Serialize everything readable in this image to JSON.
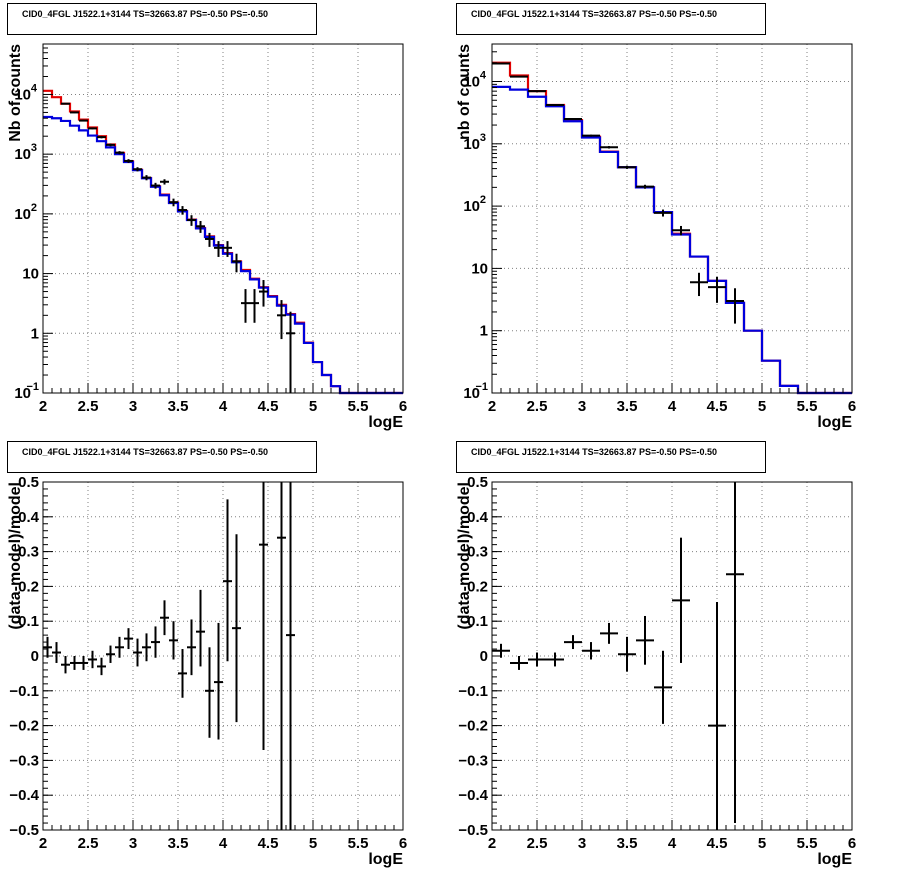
{
  "colors": {
    "data": "#000000",
    "total_model": "#e00000",
    "component_model": "#0000dd",
    "grid": "#808080"
  },
  "chart_data": [
    {
      "id": "counts-fine",
      "type": "line",
      "title": "CID0_4FGL J1522.1+3144 TS=32663.87 PS=-0.50 PS=-0.50",
      "xlabel": "logE",
      "ylabel": "Nb of counts",
      "xlim": [
        2,
        6
      ],
      "ylim": [
        0.1,
        70000
      ],
      "ylog": true,
      "grid": true,
      "xticks": [
        "2",
        "2.5",
        "3",
        "3.5",
        "4",
        "4.5",
        "5",
        "5.5",
        "6"
      ],
      "yticks": [
        {
          "v": 0.1,
          "label": "10",
          "sup": "−1"
        },
        {
          "v": 1,
          "label": "1"
        },
        {
          "v": 10,
          "label": "10"
        },
        {
          "v": 100,
          "label": "10",
          "sup": "2"
        },
        {
          "v": 1000,
          "label": "10",
          "sup": "3"
        },
        {
          "v": 10000,
          "label": "10",
          "sup": "4"
        }
      ],
      "bin_edges": [
        2.0,
        2.1,
        2.2,
        2.3,
        2.4,
        2.5,
        2.6,
        2.7,
        2.8,
        2.9,
        3.0,
        3.1,
        3.2,
        3.3,
        3.4,
        3.5,
        3.6,
        3.7,
        3.8,
        3.9,
        4.0,
        4.1,
        4.2,
        4.3,
        4.4,
        4.5,
        4.6,
        4.7,
        4.8,
        4.9,
        5.0,
        5.1,
        5.2,
        5.3,
        5.4,
        5.5,
        5.6,
        5.7,
        5.8,
        5.9,
        6.0
      ],
      "series": [
        {
          "kind": "hist",
          "color": "#e00000",
          "values": [
            11500,
            9000,
            7000,
            5200,
            3800,
            2800,
            2000,
            1450,
            1050,
            760,
            550,
            400,
            290,
            210,
            155,
            112,
            80,
            58,
            42,
            30,
            22,
            16,
            11.5,
            8.2,
            5.9,
            4.2,
            3.0,
            2.1,
            1.5,
            0.7,
            0.33,
            0.2,
            0.13,
            0.1,
            0.1,
            0.1,
            0.1,
            0.1,
            0.1,
            0.1
          ]
        },
        {
          "kind": "hist",
          "color": "#0000dd",
          "values": [
            4200,
            4000,
            3600,
            3000,
            2500,
            2050,
            1650,
            1300,
            1000,
            740,
            540,
            395,
            285,
            205,
            152,
            110,
            79,
            57,
            41,
            29.5,
            21.5,
            15.5,
            11,
            8,
            5.8,
            4.1,
            2.9,
            2.05,
            1.45,
            0.69,
            0.33,
            0.2,
            0.13,
            0.1,
            0.1,
            0.1,
            0.1,
            0.1,
            0.1,
            0.1
          ]
        },
        {
          "kind": "points",
          "color": "#000000",
          "points": [
            {
              "x": 2.25,
              "y": 7000,
              "lo": 6850,
              "hi": 7150
            },
            {
              "x": 2.35,
              "y": 5000,
              "lo": 4860,
              "hi": 5140
            },
            {
              "x": 2.45,
              "y": 3650,
              "lo": 3530,
              "hi": 3770
            },
            {
              "x": 2.55,
              "y": 2700,
              "lo": 2600,
              "hi": 2800
            },
            {
              "x": 2.65,
              "y": 1930,
              "lo": 1840,
              "hi": 2020
            },
            {
              "x": 2.75,
              "y": 1430,
              "lo": 1355,
              "hi": 1505
            },
            {
              "x": 2.85,
              "y": 1060,
              "lo": 995,
              "hi": 1125
            },
            {
              "x": 2.95,
              "y": 770,
              "lo": 715,
              "hi": 825
            },
            {
              "x": 3.05,
              "y": 560,
              "lo": 515,
              "hi": 605
            },
            {
              "x": 3.15,
              "y": 405,
              "lo": 365,
              "hi": 445
            },
            {
              "x": 3.25,
              "y": 298,
              "lo": 265,
              "hi": 331
            },
            {
              "x": 3.35,
              "y": 345,
              "lo": 310,
              "hi": 380
            },
            {
              "x": 3.45,
              "y": 157,
              "lo": 134,
              "hi": 180
            },
            {
              "x": 3.55,
              "y": 116,
              "lo": 97,
              "hi": 135
            },
            {
              "x": 3.65,
              "y": 79,
              "lo": 63,
              "hi": 95
            },
            {
              "x": 3.75,
              "y": 62,
              "lo": 48,
              "hi": 76
            },
            {
              "x": 3.85,
              "y": 38,
              "lo": 28,
              "hi": 48
            },
            {
              "x": 3.95,
              "y": 27,
              "lo": 19,
              "hi": 35
            },
            {
              "x": 4.05,
              "y": 27,
              "lo": 19,
              "hi": 35
            },
            {
              "x": 4.15,
              "y": 16,
              "lo": 10.5,
              "hi": 21.5
            },
            {
              "x": 4.25,
              "y": 3.2,
              "lo": 1.5,
              "hi": 5.5
            },
            {
              "x": 4.35,
              "y": 3.2,
              "lo": 1.5,
              "hi": 5.5
            },
            {
              "x": 4.45,
              "y": 5.0,
              "lo": 2.8,
              "hi": 7.8
            },
            {
              "x": 4.65,
              "y": 2.0,
              "lo": 0.8,
              "hi": 3.6
            },
            {
              "x": 4.75,
              "y": 1.0,
              "lo": 0.1,
              "hi": 2.3
            }
          ]
        }
      ]
    },
    {
      "id": "counts-coarse",
      "type": "line",
      "title": "CID0_4FGL J1522.1+3144 TS=32663.87 PS=-0.50 PS=-0.50",
      "xlabel": "logE",
      "ylabel": "nb of counts",
      "xlim": [
        2,
        6
      ],
      "ylim": [
        0.1,
        40000
      ],
      "ylog": true,
      "grid": true,
      "xticks": [
        "2",
        "2.5",
        "3",
        "3.5",
        "4",
        "4.5",
        "5",
        "5.5",
        "6"
      ],
      "yticks": [
        {
          "v": 0.1,
          "label": "10",
          "sup": "−1"
        },
        {
          "v": 1,
          "label": "1"
        },
        {
          "v": 10,
          "label": "10"
        },
        {
          "v": 100,
          "label": "10",
          "sup": "2"
        },
        {
          "v": 1000,
          "label": "10",
          "sup": "3"
        },
        {
          "v": 10000,
          "label": "10",
          "sup": "4"
        }
      ],
      "bin_edges": [
        2.0,
        2.2,
        2.4,
        2.6,
        2.8,
        3.0,
        3.2,
        3.4,
        3.6,
        3.8,
        4.0,
        4.2,
        4.4,
        4.6,
        4.8,
        5.0,
        5.2,
        5.4,
        5.6,
        5.8,
        6.0
      ],
      "series": [
        {
          "kind": "hist",
          "color": "#e00000",
          "values": [
            20000,
            12500,
            7000,
            4200,
            2400,
            1300,
            750,
            420,
            200,
            80,
            36,
            15.5,
            6.3,
            2.8,
            1.0,
            0.33,
            0.13,
            0.1,
            0.1,
            0.1
          ]
        },
        {
          "kind": "hist",
          "color": "#0000dd",
          "values": [
            8200,
            7400,
            5700,
            4000,
            2300,
            1260,
            740,
            420,
            200,
            80,
            35,
            15.5,
            6.3,
            2.8,
            1.0,
            0.33,
            0.13,
            0.1,
            0.1,
            0.1
          ]
        },
        {
          "kind": "points",
          "color": "#000000",
          "points": [
            {
              "x": 2.1,
              "y": 19500,
              "lo": 19300,
              "hi": 19700
            },
            {
              "x": 2.3,
              "y": 12000,
              "lo": 11850,
              "hi": 12150
            },
            {
              "x": 2.5,
              "y": 7000,
              "lo": 6880,
              "hi": 7120
            },
            {
              "x": 2.7,
              "y": 4200,
              "lo": 4110,
              "hi": 4290
            },
            {
              "x": 2.9,
              "y": 2500,
              "lo": 2430,
              "hi": 2570
            },
            {
              "x": 3.1,
              "y": 1350,
              "lo": 1300,
              "hi": 1400
            },
            {
              "x": 3.3,
              "y": 880,
              "lo": 840,
              "hi": 920
            },
            {
              "x": 3.5,
              "y": 420,
              "lo": 395,
              "hi": 445
            },
            {
              "x": 3.7,
              "y": 205,
              "lo": 190,
              "hi": 220
            },
            {
              "x": 3.9,
              "y": 78,
              "lo": 68,
              "hi": 88
            },
            {
              "x": 4.1,
              "y": 41,
              "lo": 34,
              "hi": 48
            },
            {
              "x": 4.3,
              "y": 6.0,
              "lo": 3.6,
              "hi": 8.5
            },
            {
              "x": 4.5,
              "y": 5.0,
              "lo": 2.8,
              "hi": 7.3
            },
            {
              "x": 4.7,
              "y": 3.0,
              "lo": 1.3,
              "hi": 4.8
            }
          ]
        }
      ]
    },
    {
      "id": "residuals-fine",
      "type": "scatter",
      "title": "CID0_4FGL J1522.1+3144 TS=32663.87 PS=-0.50 PS=-0.50",
      "xlabel": "logE",
      "ylabel": "(data-model)/model",
      "xlim": [
        2,
        6
      ],
      "ylim": [
        -0.5,
        0.5
      ],
      "ylog": false,
      "grid": true,
      "xticks": [
        "2",
        "2.5",
        "3",
        "3.5",
        "4",
        "4.5",
        "5",
        "5.5",
        "6"
      ],
      "yticks": [
        {
          "v": -0.5,
          "label": "−0.5"
        },
        {
          "v": -0.4,
          "label": "−0.4"
        },
        {
          "v": -0.3,
          "label": "−0.3"
        },
        {
          "v": -0.2,
          "label": "−0.2"
        },
        {
          "v": -0.1,
          "label": "−0.1"
        },
        {
          "v": 0,
          "label": "0"
        },
        {
          "v": 0.1,
          "label": "0.1"
        },
        {
          "v": 0.2,
          "label": "0.2"
        },
        {
          "v": 0.3,
          "label": "0.3"
        },
        {
          "v": 0.4,
          "label": "0.4"
        },
        {
          "v": 0.5,
          "label": "0.5"
        }
      ],
      "bin_width": 0.1,
      "series": [
        {
          "kind": "points",
          "color": "#000000",
          "points": [
            {
              "x": 2.05,
              "y": 0.025,
              "lo": -0.005,
              "hi": 0.055
            },
            {
              "x": 2.15,
              "y": 0.01,
              "lo": -0.02,
              "hi": 0.04
            },
            {
              "x": 2.25,
              "y": -0.025,
              "lo": -0.05,
              "hi": 0.0
            },
            {
              "x": 2.35,
              "y": -0.02,
              "lo": -0.04,
              "hi": 0.0
            },
            {
              "x": 2.45,
              "y": -0.02,
              "lo": -0.04,
              "hi": 0.0
            },
            {
              "x": 2.55,
              "y": -0.01,
              "lo": -0.035,
              "hi": 0.015
            },
            {
              "x": 2.65,
              "y": -0.03,
              "lo": -0.055,
              "hi": -0.005
            },
            {
              "x": 2.75,
              "y": 0.005,
              "lo": -0.02,
              "hi": 0.03
            },
            {
              "x": 2.85,
              "y": 0.025,
              "lo": -0.005,
              "hi": 0.055
            },
            {
              "x": 2.95,
              "y": 0.05,
              "lo": 0.02,
              "hi": 0.08
            },
            {
              "x": 3.05,
              "y": 0.01,
              "lo": -0.03,
              "hi": 0.05
            },
            {
              "x": 3.15,
              "y": 0.025,
              "lo": -0.015,
              "hi": 0.065
            },
            {
              "x": 3.25,
              "y": 0.04,
              "lo": -0.005,
              "hi": 0.085
            },
            {
              "x": 3.35,
              "y": 0.11,
              "lo": 0.06,
              "hi": 0.16
            },
            {
              "x": 3.45,
              "y": 0.045,
              "lo": -0.01,
              "hi": 0.1
            },
            {
              "x": 3.55,
              "y": -0.05,
              "lo": -0.12,
              "hi": 0.02
            },
            {
              "x": 3.65,
              "y": 0.025,
              "lo": -0.055,
              "hi": 0.105
            },
            {
              "x": 3.75,
              "y": 0.07,
              "lo": -0.03,
              "hi": 0.19
            },
            {
              "x": 3.85,
              "y": -0.1,
              "lo": -0.235,
              "hi": 0.025
            },
            {
              "x": 3.95,
              "y": -0.075,
              "lo": -0.24,
              "hi": 0.095
            },
            {
              "x": 4.05,
              "y": 0.215,
              "lo": -0.015,
              "hi": 0.45
            },
            {
              "x": 4.15,
              "y": 0.08,
              "lo": -0.19,
              "hi": 0.35
            },
            {
              "x": 4.45,
              "y": 0.32,
              "lo": -0.27,
              "hi": 0.5
            },
            {
              "x": 4.65,
              "y": 0.34,
              "lo": -0.5,
              "hi": 0.5
            },
            {
              "x": 4.75,
              "y": 0.06,
              "lo": -0.5,
              "hi": 0.5
            }
          ]
        }
      ]
    },
    {
      "id": "residuals-coarse",
      "type": "scatter",
      "title": "CID0_4FGL J1522.1+3144 TS=32663.87 PS=-0.50 PS=-0.50",
      "xlabel": "logE",
      "ylabel": "(data-model)/model",
      "xlim": [
        2,
        6
      ],
      "ylim": [
        -0.5,
        0.5
      ],
      "ylog": false,
      "grid": true,
      "xticks": [
        "2",
        "2.5",
        "3",
        "3.5",
        "4",
        "4.5",
        "5",
        "5.5",
        "6"
      ],
      "yticks": [
        {
          "v": -0.5,
          "label": "−0.5"
        },
        {
          "v": -0.4,
          "label": "−0.4"
        },
        {
          "v": -0.3,
          "label": "−0.3"
        },
        {
          "v": -0.2,
          "label": "−0.2"
        },
        {
          "v": -0.1,
          "label": "−0.1"
        },
        {
          "v": 0,
          "label": "0"
        },
        {
          "v": 0.1,
          "label": "0.1"
        },
        {
          "v": 0.2,
          "label": "0.2"
        },
        {
          "v": 0.3,
          "label": "0.3"
        },
        {
          "v": 0.4,
          "label": "0.4"
        },
        {
          "v": 0.5,
          "label": "0.5"
        }
      ],
      "bin_width": 0.2,
      "series": [
        {
          "kind": "points",
          "color": "#000000",
          "points": [
            {
              "x": 2.1,
              "y": 0.015,
              "lo": -0.005,
              "hi": 0.035
            },
            {
              "x": 2.3,
              "y": -0.02,
              "lo": -0.04,
              "hi": 0.0
            },
            {
              "x": 2.5,
              "y": -0.01,
              "lo": -0.03,
              "hi": 0.01
            },
            {
              "x": 2.7,
              "y": -0.01,
              "lo": -0.03,
              "hi": 0.01
            },
            {
              "x": 2.9,
              "y": 0.04,
              "lo": 0.02,
              "hi": 0.06
            },
            {
              "x": 3.1,
              "y": 0.015,
              "lo": -0.01,
              "hi": 0.04
            },
            {
              "x": 3.3,
              "y": 0.065,
              "lo": 0.035,
              "hi": 0.095
            },
            {
              "x": 3.5,
              "y": 0.005,
              "lo": -0.045,
              "hi": 0.055
            },
            {
              "x": 3.7,
              "y": 0.045,
              "lo": -0.025,
              "hi": 0.115
            },
            {
              "x": 3.9,
              "y": -0.09,
              "lo": -0.195,
              "hi": 0.015
            },
            {
              "x": 4.1,
              "y": 0.16,
              "lo": -0.02,
              "hi": 0.34
            },
            {
              "x": 4.5,
              "y": -0.2,
              "lo": -0.5,
              "hi": 0.155
            },
            {
              "x": 4.7,
              "y": 0.235,
              "lo": -0.48,
              "hi": 0.5
            }
          ]
        }
      ]
    }
  ]
}
